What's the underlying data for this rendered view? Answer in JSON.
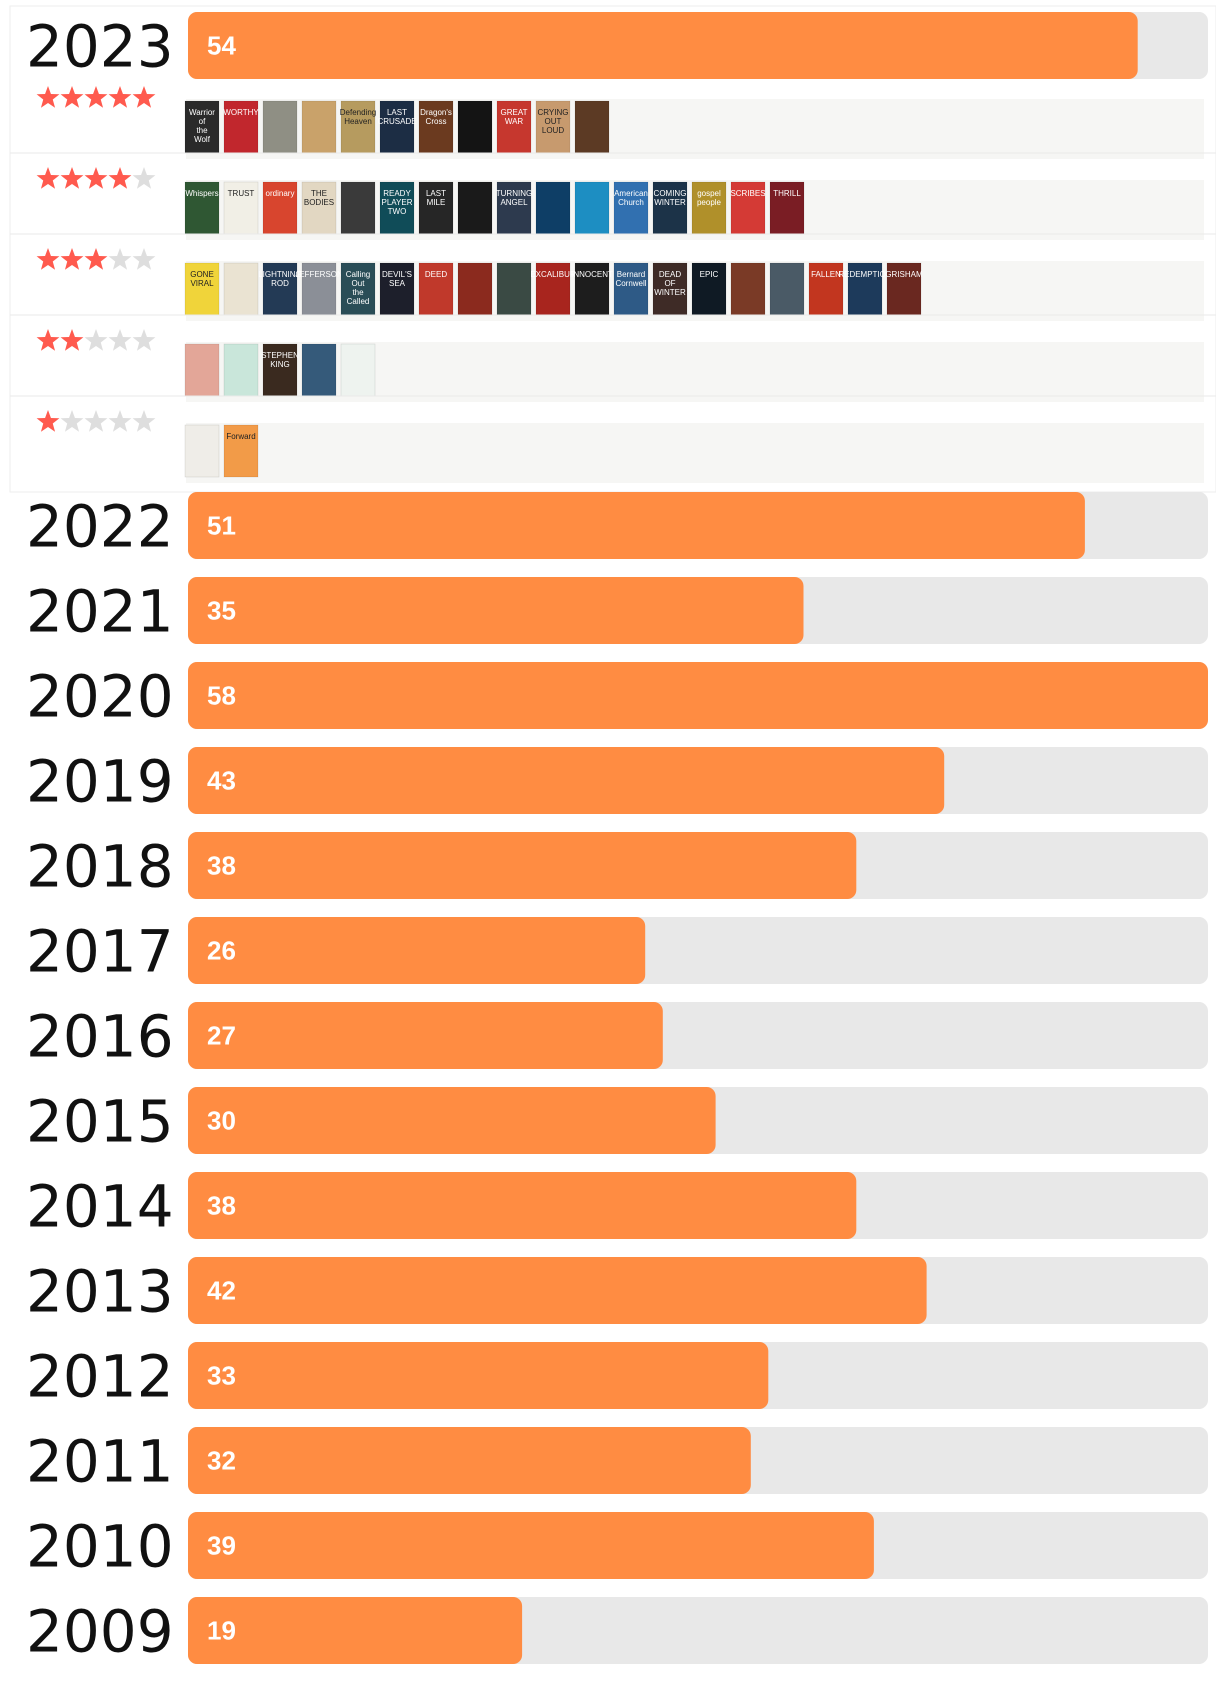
{
  "chart_data": {
    "type": "bar",
    "orientation": "horizontal",
    "title": "",
    "xlabel": "",
    "ylabel": "",
    "xlim": [
      0,
      58
    ],
    "grid": false,
    "categories": [
      "2023",
      "2022",
      "2021",
      "2020",
      "2019",
      "2018",
      "2017",
      "2016",
      "2015",
      "2014",
      "2013",
      "2012",
      "2011",
      "2010",
      "2009"
    ],
    "values": [
      54,
      51,
      35,
      58,
      43,
      38,
      26,
      27,
      30,
      38,
      42,
      33,
      32,
      39,
      19
    ],
    "colors": {
      "bar": "#ff8c42",
      "track": "#e8e8e8",
      "star_filled": "#ff5a4e",
      "star_empty": "#dedede",
      "row_bg": "#f6f6f4"
    },
    "expanded_year": "2023",
    "rating_rows": [
      {
        "stars": 5,
        "books": [
          {
            "color": "#2a2a2a",
            "text": "Warrior of the Wolf King"
          },
          {
            "color": "#c1272d",
            "text": "WORTHY"
          },
          {
            "color": "#8f8f84",
            "text": ""
          },
          {
            "color": "#c9a26a",
            "text": ""
          },
          {
            "color": "#b69b5f",
            "text": "Defending Heaven"
          },
          {
            "color": "#1c2d44",
            "text": "LAST CRUSADE"
          },
          {
            "color": "#6b3a1f",
            "text": "Dragon's Cross"
          },
          {
            "color": "#141414",
            "text": ""
          },
          {
            "color": "#c6372e",
            "text": "GREAT WAR"
          },
          {
            "color": "#c79a6e",
            "text": "CRYING OUT LOUD"
          },
          {
            "color": "#5c3a24",
            "text": ""
          }
        ]
      },
      {
        "stars": 4,
        "books": [
          {
            "color": "#2f5733",
            "text": "Whispers"
          },
          {
            "color": "#f1efe6",
            "text": "TRUST"
          },
          {
            "color": "#d8452e",
            "text": "ordinary"
          },
          {
            "color": "#e2d7c2",
            "text": "THE BODIES"
          },
          {
            "color": "#3a3a3a",
            "text": ""
          },
          {
            "color": "#104c58",
            "text": "READY PLAYER TWO"
          },
          {
            "color": "#262626",
            "text": "LAST MILE"
          },
          {
            "color": "#1a1a1a",
            "text": ""
          },
          {
            "color": "#2d3a4e",
            "text": "TURNING ANGEL"
          },
          {
            "color": "#0e3e66",
            "text": ""
          },
          {
            "color": "#1d8ec2",
            "text": ""
          },
          {
            "color": "#3170b0",
            "text": "American Church"
          },
          {
            "color": "#1c3348",
            "text": "COMING WINTER"
          },
          {
            "color": "#b0902a",
            "text": "gospel people"
          },
          {
            "color": "#d43a35",
            "text": "SCRIBES"
          },
          {
            "color": "#7a1d24",
            "text": "THRILL"
          }
        ]
      },
      {
        "stars": 3,
        "books": [
          {
            "color": "#f0d43a",
            "text": "GONE VIRAL"
          },
          {
            "color": "#eae3d2",
            "text": ""
          },
          {
            "color": "#233a55",
            "text": "LIGHTNING ROD"
          },
          {
            "color": "#8b8f97",
            "text": "JEFFERSON"
          },
          {
            "color": "#2a4d57",
            "text": "Calling Out the Called"
          },
          {
            "color": "#1d1f2b",
            "text": "DEVIL'S SEA"
          },
          {
            "color": "#c0392b",
            "text": "DEED"
          },
          {
            "color": "#8b2a1e",
            "text": ""
          },
          {
            "color": "#3a4a44",
            "text": ""
          },
          {
            "color": "#a8251e",
            "text": "EXCALIBUR"
          },
          {
            "color": "#1d1d1d",
            "text": "INNOCENT"
          },
          {
            "color": "#2e5a86",
            "text": "Bernard Cornwell"
          },
          {
            "color": "#3e2b26",
            "text": "DEAD OF WINTER"
          },
          {
            "color": "#0f1a24",
            "text": "EPIC"
          },
          {
            "color": "#7a3a26",
            "text": ""
          },
          {
            "color": "#4a5a66",
            "text": ""
          },
          {
            "color": "#c2361f",
            "text": "FALLEN"
          },
          {
            "color": "#1d3a5b",
            "text": "REDEMPTION"
          },
          {
            "color": "#6a2820",
            "text": "GRISHAM"
          }
        ]
      },
      {
        "stars": 2,
        "books": [
          {
            "color": "#e3a698",
            "text": ""
          },
          {
            "color": "#c9e6da",
            "text": ""
          },
          {
            "color": "#3a2a1f",
            "text": "STEPHEN KING"
          },
          {
            "color": "#355a7a",
            "text": ""
          },
          {
            "color": "#eef3ef",
            "text": ""
          }
        ]
      },
      {
        "stars": 1,
        "books": [
          {
            "color": "#efede8",
            "text": ""
          },
          {
            "color": "#f29b48",
            "text": "Forward"
          }
        ]
      }
    ]
  }
}
